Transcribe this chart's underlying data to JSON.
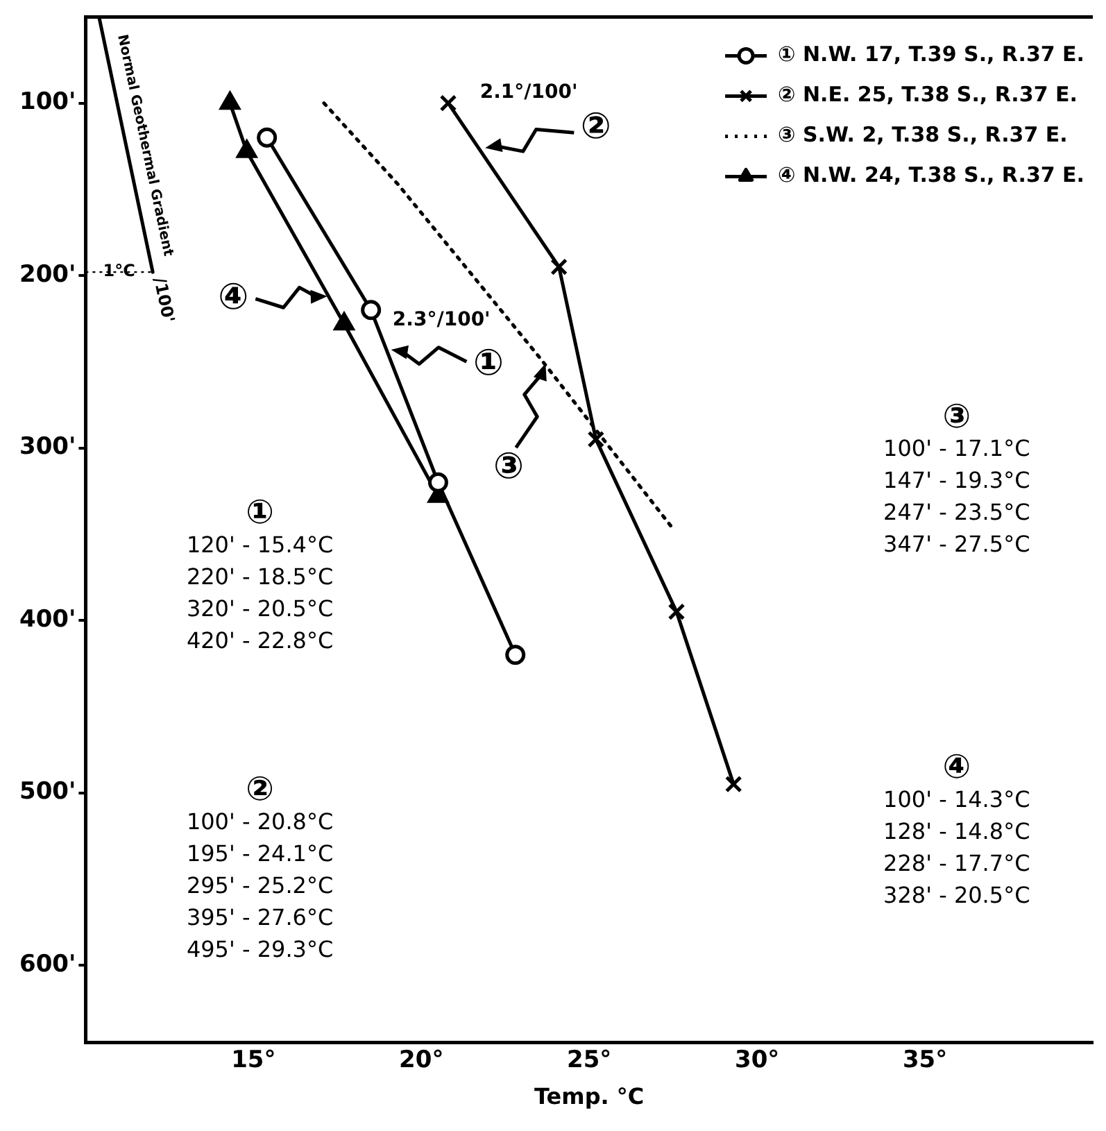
{
  "chart_data": {
    "type": "line",
    "xlabel": "Temp. °C",
    "xlim": [
      10,
      40
    ],
    "ylim": [
      645,
      50
    ],
    "xticks": [
      {
        "value": 15,
        "label": "15°"
      },
      {
        "value": 20,
        "label": "20°"
      },
      {
        "value": 25,
        "label": "25°"
      },
      {
        "value": 30,
        "label": "30°"
      },
      {
        "value": 35,
        "label": "35°"
      }
    ],
    "yticks": [
      {
        "value": 100,
        "label": "100'"
      },
      {
        "value": 200,
        "label": "200'"
      },
      {
        "value": 300,
        "label": "300'"
      },
      {
        "value": 400,
        "label": "400'"
      },
      {
        "value": 500,
        "label": "500'"
      },
      {
        "value": 600,
        "label": "600'"
      }
    ],
    "grid": false,
    "legend": "top right",
    "series": [
      {
        "name": "① N.W. 17, T.39 S., R.37 E.",
        "color": "#000000",
        "marker": "circle",
        "line_style": "solid",
        "x": [
          15.4,
          18.5,
          20.5,
          22.8
        ],
        "values": [
          120,
          220,
          320,
          420
        ]
      },
      {
        "name": "② N.E. 25, T.38 S., R.37 E.",
        "color": "#000000",
        "marker": "cross",
        "line_style": "solid",
        "x": [
          20.8,
          24.1,
          25.2,
          27.6,
          29.3
        ],
        "values": [
          100,
          195,
          295,
          395,
          495
        ]
      },
      {
        "name": "③ S.W. 2, T.38 S., R.37 E.",
        "color": "#000000",
        "marker": "none",
        "line_style": "dotted",
        "x": [
          17.1,
          19.3,
          23.5,
          27.5
        ],
        "values": [
          100,
          147,
          247,
          347
        ]
      },
      {
        "name": "④ N.W. 24, T.38 S., R.37 E.",
        "color": "#000000",
        "marker": "triangle",
        "line_style": "solid",
        "x": [
          14.3,
          14.8,
          17.7,
          20.5
        ],
        "values": [
          100,
          128,
          228,
          328
        ]
      },
      {
        "color": "#000000",
        "marker": "none",
        "line_style": "solid",
        "x": [
          10.4,
          12.0
        ],
        "values": [
          50,
          198
        ]
      }
    ],
    "annotations": [
      "①\n120' - 15.4°C\n220' - 18.5°C\n320' - 20.5°C\n420' - 22.8°C",
      "②\n100' - 20.8°C\n195' - 24.1°C\n295' - 25.2°C\n395' - 27.6°C\n495' - 29.3°C",
      "③\n100' - 17.1°C\n147' - 19.3°C\n247' - 23.5°C\n347' - 27.5°C",
      "④\n100' - 14.3°C\n128' - 14.8°C\n228' - 17.7°C\n328' - 20.5°C",
      {
        "text": "①",
        "x": 19.1,
        "y": 243
      },
      {
        "text": "②",
        "x": 21.9,
        "y": 126
      },
      {
        "text": "③",
        "x": 23.7,
        "y": 251
      },
      {
        "text": "④",
        "x": 17.2,
        "y": 212
      },
      "2.3°/100'",
      "2.1°/100'",
      {
        "text": "Normal Geothermal Gradient",
        "x": 11.4,
        "y": 126
      },
      "1°C",
      "/100'"
    ]
  }
}
